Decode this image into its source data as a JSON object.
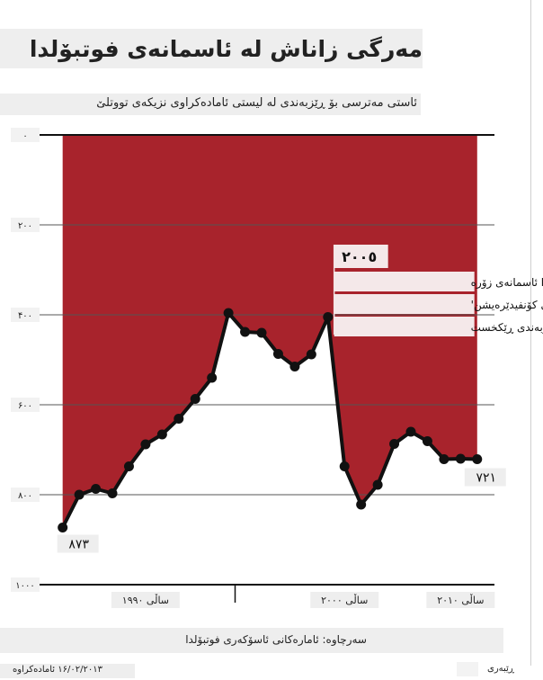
{
  "title": "مەرگی زاناش لە ئاسمانەی فوتبۆلدا",
  "subtitle": "ئاستی مەترسی بۆ ڕێزبەندی لە لیستی ئامادەکراوی نزیکەی تووتلێ",
  "footer": "سەرچاوە: ئامارەکانی ئاسۆکەری فوتبۆلدا",
  "date": "۱۶/۰۲/۲۰۱۳ ئامادەکراوە",
  "source": "ڕێبەری",
  "colors": {
    "fill": "#a8232c",
    "line": "#111111",
    "grid": "#555555"
  },
  "chart_data": {
    "type": "area",
    "title": "مەرگی زاناش لە ئاسمانەی فوتبۆلدا",
    "y_inverted": true,
    "ylim": [
      0,
      1000
    ],
    "yticks": [
      0,
      200,
      400,
      600,
      800,
      1000
    ],
    "ytick_labels": [
      "۰",
      "۲۰۰",
      "۴۰۰",
      "۶۰۰",
      "۸۰۰",
      "۱۰۰۰"
    ],
    "xlim": [
      1986.8,
      2012.5
    ],
    "xtick_labels": [
      {
        "x": 1992,
        "label": "ساڵی ۱۹۹۰"
      },
      {
        "x": 2004,
        "label": "ساڵی ۲۰۰۰"
      },
      {
        "x": 2011,
        "label": "ساڵی ۲۰۱۰"
      }
    ],
    "x_divider_years": [
      1997.4
    ],
    "x": [
      1987,
      1988,
      1989,
      1990,
      1991,
      1992,
      1993,
      1994,
      1995,
      1996,
      1997,
      1998,
      1999,
      2000,
      2001,
      2002,
      2003,
      2004,
      2005,
      2006,
      2007,
      2008,
      2009,
      2010,
      2011,
      2012
    ],
    "values": [
      873,
      800,
      787,
      797,
      737,
      688,
      666,
      631,
      587,
      540,
      396,
      438,
      440,
      487,
      515,
      488,
      405,
      737,
      822,
      778,
      687,
      660,
      681,
      721,
      720,
      721
    ],
    "point_labels": [
      {
        "index": 0,
        "text": "٨٧٣"
      },
      {
        "index": 25,
        "text": "٧٢١"
      }
    ],
    "annotation": {
      "index": 18,
      "value_text": "۲۰۰٥",
      "lines": [
        "فوتبۆلدا ئاسمانەی زۆرە",
        "'ئاستی کۆنفیدێرەیشن'",
        "ڕیزبەندی ڕێکخست"
      ]
    }
  }
}
